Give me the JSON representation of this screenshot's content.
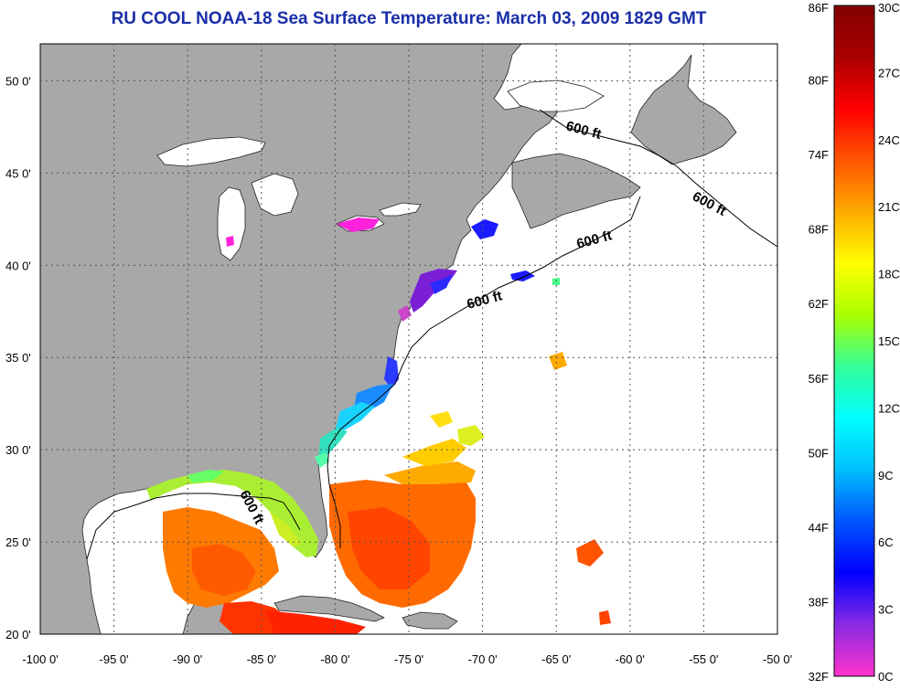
{
  "title": "RU COOL  NOAA-18  Sea Surface Temperature:  March 03, 2009 1829 GMT",
  "map": {
    "lon_range": [
      -100,
      -50
    ],
    "lat_range": [
      20,
      52
    ],
    "lat_ticks": [
      {
        "value": 50,
        "label": "50 0'"
      },
      {
        "value": 45,
        "label": "45 0'"
      },
      {
        "value": 40,
        "label": "40 0'"
      },
      {
        "value": 35,
        "label": "35 0'"
      },
      {
        "value": 30,
        "label": "30 0'"
      },
      {
        "value": 25,
        "label": "25 0'"
      },
      {
        "value": 20,
        "label": "20 0'"
      }
    ],
    "lon_ticks": [
      {
        "value": -100,
        "label": "-100 0'"
      },
      {
        "value": -95,
        "label": "-95 0'"
      },
      {
        "value": -90,
        "label": "-90 0'"
      },
      {
        "value": -85,
        "label": "-85 0'"
      },
      {
        "value": -80,
        "label": "-80 0'"
      },
      {
        "value": -75,
        "label": "-75 0'"
      },
      {
        "value": -70,
        "label": "-70 0'"
      },
      {
        "value": -65,
        "label": "-65 0'"
      },
      {
        "value": -60,
        "label": "-60 0'"
      },
      {
        "value": -55,
        "label": "-55 0'"
      },
      {
        "value": -50,
        "label": "-50 0'"
      }
    ],
    "depth_labels": [
      "600 ft",
      "600 ft",
      "600 ft",
      "600 ft",
      "600 ft"
    ],
    "colors": {
      "land": "#a8a8a8",
      "ocean": "#ffffff",
      "grid": "#555555",
      "contour": "#000000"
    }
  },
  "colorbar": {
    "fahrenheit_labels": [
      "86F",
      "80F",
      "74F",
      "68F",
      "62F",
      "56F",
      "50F",
      "44F",
      "38F",
      "32F"
    ],
    "celsius_labels": [
      "30C",
      "27C",
      "24C",
      "21C",
      "18C",
      "15C",
      "12C",
      "9C",
      "6C",
      "3C",
      "0C"
    ],
    "temp_min_c": 0,
    "temp_max_c": 30,
    "stops": [
      "#ff33cc",
      "#8a2be2",
      "#0000ff",
      "#0055ff",
      "#00bfff",
      "#00ffff",
      "#33ff99",
      "#aaff00",
      "#ffff00",
      "#ffaa00",
      "#ff5500",
      "#ff0000",
      "#aa0000",
      "#800000"
    ]
  }
}
